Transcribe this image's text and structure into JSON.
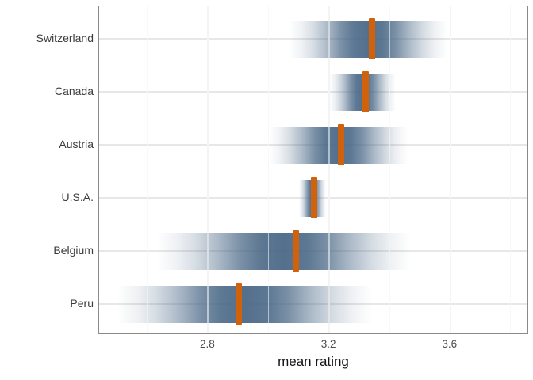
{
  "chart_data": {
    "type": "interval",
    "subtype": "gradient-interval (density slab + mean line)",
    "title": "",
    "xlabel": "mean rating",
    "ylabel": "",
    "categories": [
      "Switzerland",
      "Canada",
      "Austria",
      "U.S.A.",
      "Belgium",
      "Peru"
    ],
    "series": [
      {
        "name": "Switzerland",
        "mean": 3.34,
        "lo": 3.07,
        "hi": 3.59
      },
      {
        "name": "Canada",
        "mean": 3.32,
        "lo": 3.2,
        "hi": 3.42
      },
      {
        "name": "Austria",
        "mean": 3.24,
        "lo": 3.0,
        "hi": 3.46
      },
      {
        "name": "U.S.A.",
        "mean": 3.15,
        "lo": 3.1,
        "hi": 3.19
      },
      {
        "name": "Belgium",
        "mean": 3.09,
        "lo": 2.63,
        "hi": 3.47
      },
      {
        "name": "Peru",
        "mean": 2.9,
        "lo": 2.5,
        "hi": 3.34
      }
    ],
    "xlim": [
      2.44,
      3.86
    ],
    "x_major_ticks": [
      2.8,
      3.2,
      3.6
    ],
    "x_tick_labels": [
      "2.8",
      "3.2",
      "3.6"
    ],
    "x_minor_ticks": [
      2.6,
      3.0,
      3.4,
      3.8
    ],
    "grid": "major and minor vertical + one horizontal line per category, light gray, visible over slabs",
    "legend": "none",
    "colors": {
      "slab_base": "#466584",
      "slab_peak_alpha": 0.93,
      "mean_line": "#D2610B",
      "grid": "#E7E7E7",
      "panel_border": "#8A8A8A",
      "axis_text": "#4A4A4A",
      "category_text": "#3C3C3C",
      "axis_title": "#141414"
    }
  }
}
